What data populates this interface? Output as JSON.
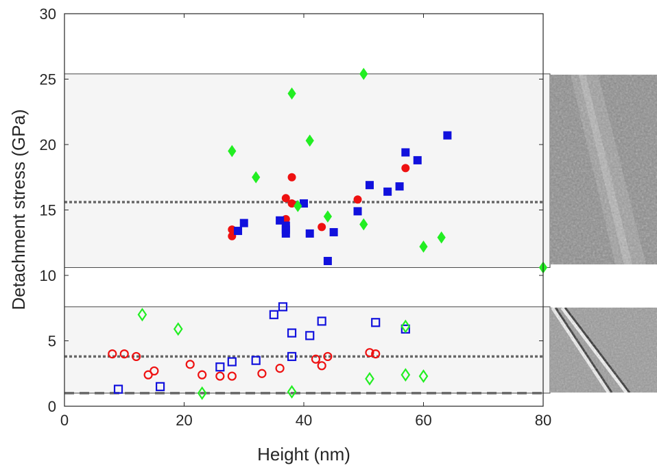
{
  "chart_data": {
    "type": "scatter",
    "xlabel": "Height (nm)",
    "ylabel": "Detachment stress (GPa)",
    "xlim": [
      0,
      80
    ],
    "ylim": [
      0,
      30
    ],
    "xticks": [
      "0",
      "20",
      "40",
      "60",
      "80"
    ],
    "yticks": [
      "0",
      "5",
      "10",
      "15",
      "20",
      "25",
      "30"
    ],
    "grid": false,
    "bands": [
      {
        "y0": 10.6,
        "y1": 25.4,
        "fill": "#f5f5f5"
      },
      {
        "y0": 1.0,
        "y1": 7.6,
        "fill": "#f5f5f5"
      }
    ],
    "reference_lines": [
      {
        "y": 15.6,
        "style": "dotted",
        "color": "#666666"
      },
      {
        "y": 3.8,
        "style": "dotted",
        "color": "#666666"
      },
      {
        "y": 1.0,
        "style": "dashed",
        "color": "#666666"
      }
    ],
    "series": [
      {
        "marker": "circle",
        "filled": true,
        "color": "#ee1111",
        "points": [
          [
            28,
            13.0
          ],
          [
            28,
            13.5
          ],
          [
            37,
            15.9
          ],
          [
            37,
            14.3
          ],
          [
            38,
            17.5
          ],
          [
            38,
            15.5
          ],
          [
            43,
            13.7
          ],
          [
            49,
            15.8
          ],
          [
            57,
            18.2
          ]
        ]
      },
      {
        "marker": "square",
        "filled": true,
        "color": "#1111dd",
        "points": [
          [
            29,
            13.4
          ],
          [
            30,
            14.0
          ],
          [
            36,
            14.2
          ],
          [
            37,
            13.8
          ],
          [
            37,
            13.5
          ],
          [
            37,
            13.2
          ],
          [
            40,
            15.5
          ],
          [
            41,
            13.2
          ],
          [
            44,
            11.1
          ],
          [
            45,
            13.3
          ],
          [
            49,
            14.9
          ],
          [
            51,
            16.9
          ],
          [
            54,
            16.4
          ],
          [
            56,
            16.8
          ],
          [
            57,
            19.4
          ],
          [
            59,
            18.8
          ],
          [
            64,
            20.7
          ]
        ]
      },
      {
        "marker": "diamond",
        "filled": true,
        "color": "#22ee22",
        "points": [
          [
            28,
            19.5
          ],
          [
            32,
            17.5
          ],
          [
            38,
            23.9
          ],
          [
            39,
            15.3
          ],
          [
            41,
            20.3
          ],
          [
            44,
            14.5
          ],
          [
            50,
            25.4
          ],
          [
            50,
            13.9
          ],
          [
            60,
            12.2
          ],
          [
            63,
            12.9
          ],
          [
            80,
            10.6
          ]
        ]
      },
      {
        "marker": "circle",
        "filled": false,
        "color": "#ee1111",
        "points": [
          [
            8,
            4.0
          ],
          [
            10,
            4.0
          ],
          [
            12,
            3.8
          ],
          [
            14,
            2.4
          ],
          [
            15,
            2.7
          ],
          [
            21,
            3.2
          ],
          [
            23,
            2.4
          ],
          [
            26,
            2.3
          ],
          [
            28,
            2.3
          ],
          [
            33,
            2.5
          ],
          [
            36,
            2.9
          ],
          [
            42,
            3.6
          ],
          [
            43,
            3.1
          ],
          [
            44,
            3.8
          ],
          [
            51,
            4.1
          ],
          [
            52,
            4.0
          ]
        ]
      },
      {
        "marker": "square",
        "filled": false,
        "color": "#1111dd",
        "points": [
          [
            9,
            1.3
          ],
          [
            16,
            1.5
          ],
          [
            26,
            3.0
          ],
          [
            28,
            3.4
          ],
          [
            32,
            3.5
          ],
          [
            35,
            7.0
          ],
          [
            36.5,
            7.6
          ],
          [
            38,
            5.6
          ],
          [
            38,
            3.8
          ],
          [
            41,
            5.4
          ],
          [
            43,
            6.5
          ],
          [
            52,
            6.4
          ],
          [
            57,
            5.9
          ]
        ]
      },
      {
        "marker": "diamond",
        "filled": false,
        "color": "#22ee22",
        "points": [
          [
            13,
            7.0
          ],
          [
            19,
            5.9
          ],
          [
            23,
            1.0
          ],
          [
            38,
            1.1
          ],
          [
            51,
            2.1
          ],
          [
            57,
            2.4
          ],
          [
            57,
            6.1
          ],
          [
            60,
            2.3
          ]
        ]
      }
    ]
  },
  "insets": [
    {
      "name": "afm-image-upper",
      "description_tone": "grey"
    },
    {
      "name": "afm-image-lower",
      "description_tone": "grey"
    }
  ]
}
